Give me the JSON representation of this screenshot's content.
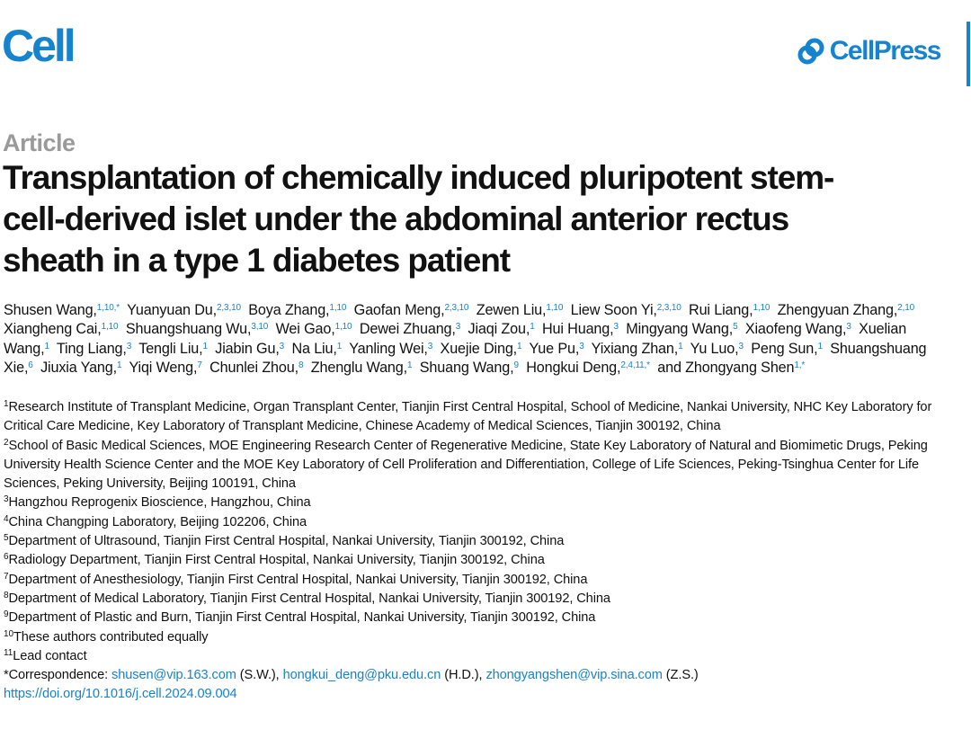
{
  "journal": "Cell",
  "publisher": "CellPress",
  "article_type": "Article",
  "title": "Transplantation of chemically induced pluripotent stem-cell-derived islet under the abdominal anterior rectus sheath in a type 1 diabetes patient",
  "authors": [
    {
      "name": "Shusen Wang,",
      "sup": "1,10,*"
    },
    {
      "name": "Yuanyuan Du,",
      "sup": "2,3,10"
    },
    {
      "name": "Boya Zhang,",
      "sup": "1,10"
    },
    {
      "name": "Gaofan Meng,",
      "sup": "2,3,10"
    },
    {
      "name": "Zewen Liu,",
      "sup": "1,10"
    },
    {
      "name": "Liew Soon Yi,",
      "sup": "2,3,10"
    },
    {
      "name": "Rui Liang,",
      "sup": "1,10"
    },
    {
      "name": "Zhengyuan Zhang,",
      "sup": "2,10"
    },
    {
      "name": "Xiangheng Cai,",
      "sup": "1,10"
    },
    {
      "name": "Shuangshuang Wu,",
      "sup": "3,10"
    },
    {
      "name": "Wei Gao,",
      "sup": "1,10"
    },
    {
      "name": "Dewei Zhuang,",
      "sup": "3"
    },
    {
      "name": "Jiaqi Zou,",
      "sup": "1"
    },
    {
      "name": "Hui Huang,",
      "sup": "3"
    },
    {
      "name": "Mingyang Wang,",
      "sup": "5"
    },
    {
      "name": "Xiaofeng Wang,",
      "sup": "3"
    },
    {
      "name": "Xuelian Wang,",
      "sup": "1"
    },
    {
      "name": "Ting Liang,",
      "sup": "3"
    },
    {
      "name": "Tengli Liu,",
      "sup": "1"
    },
    {
      "name": "Jiabin Gu,",
      "sup": "3"
    },
    {
      "name": "Na Liu,",
      "sup": "1"
    },
    {
      "name": "Yanling Wei,",
      "sup": "3"
    },
    {
      "name": "Xuejie Ding,",
      "sup": "1"
    },
    {
      "name": "Yue Pu,",
      "sup": "3"
    },
    {
      "name": "Yixiang Zhan,",
      "sup": "1"
    },
    {
      "name": "Yu Luo,",
      "sup": "3"
    },
    {
      "name": "Peng Sun,",
      "sup": "1"
    },
    {
      "name": "Shuangshuang Xie,",
      "sup": "6"
    },
    {
      "name": "Jiuxia Yang,",
      "sup": "1"
    },
    {
      "name": "Yiqi Weng,",
      "sup": "7"
    },
    {
      "name": "Chunlei Zhou,",
      "sup": "8"
    },
    {
      "name": "Zhenglu Wang,",
      "sup": "1"
    },
    {
      "name": "Shuang Wang,",
      "sup": "9"
    },
    {
      "name": "Hongkui Deng,",
      "sup": "2,4,11,*"
    },
    {
      "name": "and Zhongyang Shen",
      "sup": "1,*"
    }
  ],
  "affiliations": [
    {
      "num": "1",
      "text": "Research Institute of Transplant Medicine, Organ Transplant Center, Tianjin First Central Hospital, School of Medicine, Nankai University, NHC Key Laboratory for Critical Care Medicine, Key Laboratory of Transplant Medicine, Chinese Academy of Medical Sciences, Tianjin 300192, China"
    },
    {
      "num": "2",
      "text": "School of Basic Medical Sciences, MOE Engineering Research Center of Regenerative Medicine, State Key Laboratory of Natural and Biomimetic Drugs, Peking University Health Science Center and the MOE Key Laboratory of Cell Proliferation and Differentiation, College of Life Sciences, Peking-Tsinghua Center for Life Sciences, Peking University, Beijing 100191, China"
    },
    {
      "num": "3",
      "text": "Hangzhou Reprogenix Bioscience, Hangzhou, China"
    },
    {
      "num": "4",
      "text": "China Changping Laboratory, Beijing 102206, China"
    },
    {
      "num": "5",
      "text": "Department of Ultrasound, Tianjin First Central Hospital, Nankai University, Tianjin 300192, China"
    },
    {
      "num": "6",
      "text": "Radiology Department, Tianjin First Central Hospital, Nankai University, Tianjin 300192, China"
    },
    {
      "num": "7",
      "text": "Department of Anesthesiology, Tianjin First Central Hospital, Nankai University, Tianjin 300192, China"
    },
    {
      "num": "8",
      "text": "Department of Medical Laboratory, Tianjin First Central Hospital, Nankai University, Tianjin 300192, China"
    },
    {
      "num": "9",
      "text": "Department of Plastic and Burn, Tianjin First Central Hospital, Nankai University, Tianjin 300192, China"
    },
    {
      "num": "10",
      "text": "These authors contributed equally"
    },
    {
      "num": "11",
      "text": "Lead contact"
    }
  ],
  "correspondence": {
    "label": "*Correspondence:",
    "entries": [
      {
        "email": "shusen@vip.163.com",
        "initials": "(S.W.),"
      },
      {
        "email": "hongkui_deng@pku.edu.cn",
        "initials": "(H.D.),"
      },
      {
        "email": "zhongyangshen@vip.sina.com",
        "initials": "(Z.S.)"
      }
    ]
  },
  "doi": "https://doi.org/10.1016/j.cell.2024.09.004"
}
